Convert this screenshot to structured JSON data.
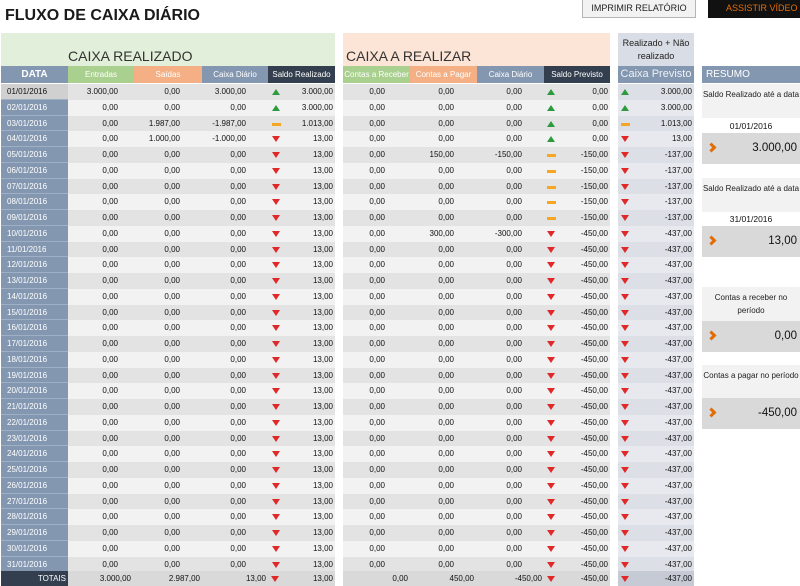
{
  "title": "FLUXO DE CAIXA DIÁRIO",
  "buttons": {
    "print": "IMPRIMIR RELATÓRIO",
    "video": "ASSISTIR VÍDEO DE"
  },
  "sections": {
    "realizado": "CAIXA REALIZADO",
    "a_realizar": "CAIXA A REALIZAR",
    "previsto_top": "Realizado + Não realizado"
  },
  "columns": {
    "data": "DATA",
    "entradas": "Entradas",
    "saidas": "Saídas",
    "caixa_diario": "Caixa Diário",
    "saldo_realizado": "Saldo Realizado",
    "contas_receber": "Contas a Receber",
    "contas_pagar": "Contas a Pagar",
    "caixa_diario_2": "Caixa Diário",
    "saldo_previsto": "Saldo Previsto",
    "caixa_previsto": "Caixa Previsto"
  },
  "icon_colors": {
    "up": "#2e9a3c",
    "down": "#e02828",
    "flat": "#f5a623",
    "accent": "#e36c09"
  },
  "rows": [
    {
      "date": "01/01/2016",
      "ent": "3.000,00",
      "sai": "0,00",
      "cxd": "3.000,00",
      "sr_icon": "up",
      "sr": "3.000,00",
      "cr": "0,00",
      "cp": "0,00",
      "cxd2": "0,00",
      "sp_icon": "up",
      "sp": "0,00",
      "prev_icon": "up",
      "prev": "3.000,00"
    },
    {
      "date": "02/01/2016",
      "ent": "0,00",
      "sai": "0,00",
      "cxd": "0,00",
      "sr_icon": "up",
      "sr": "3.000,00",
      "cr": "0,00",
      "cp": "0,00",
      "cxd2": "0,00",
      "sp_icon": "up",
      "sp": "0,00",
      "prev_icon": "up",
      "prev": "3.000,00"
    },
    {
      "date": "03/01/2016",
      "ent": "0,00",
      "sai": "1.987,00",
      "cxd": "-1.987,00",
      "sr_icon": "flat",
      "sr": "1.013,00",
      "cr": "0,00",
      "cp": "0,00",
      "cxd2": "0,00",
      "sp_icon": "up",
      "sp": "0,00",
      "prev_icon": "flat",
      "prev": "1.013,00"
    },
    {
      "date": "04/01/2016",
      "ent": "0,00",
      "sai": "1.000,00",
      "cxd": "-1.000,00",
      "sr_icon": "down",
      "sr": "13,00",
      "cr": "0,00",
      "cp": "0,00",
      "cxd2": "0,00",
      "sp_icon": "up",
      "sp": "0,00",
      "prev_icon": "down",
      "prev": "13,00"
    },
    {
      "date": "05/01/2016",
      "ent": "0,00",
      "sai": "0,00",
      "cxd": "0,00",
      "sr_icon": "down",
      "sr": "13,00",
      "cr": "0,00",
      "cp": "150,00",
      "cxd2": "-150,00",
      "sp_icon": "flat",
      "sp": "-150,00",
      "prev_icon": "down",
      "prev": "-137,00"
    },
    {
      "date": "06/01/2016",
      "ent": "0,00",
      "sai": "0,00",
      "cxd": "0,00",
      "sr_icon": "down",
      "sr": "13,00",
      "cr": "0,00",
      "cp": "0,00",
      "cxd2": "0,00",
      "sp_icon": "flat",
      "sp": "-150,00",
      "prev_icon": "down",
      "prev": "-137,00"
    },
    {
      "date": "07/01/2016",
      "ent": "0,00",
      "sai": "0,00",
      "cxd": "0,00",
      "sr_icon": "down",
      "sr": "13,00",
      "cr": "0,00",
      "cp": "0,00",
      "cxd2": "0,00",
      "sp_icon": "flat",
      "sp": "-150,00",
      "prev_icon": "down",
      "prev": "-137,00"
    },
    {
      "date": "08/01/2016",
      "ent": "0,00",
      "sai": "0,00",
      "cxd": "0,00",
      "sr_icon": "down",
      "sr": "13,00",
      "cr": "0,00",
      "cp": "0,00",
      "cxd2": "0,00",
      "sp_icon": "flat",
      "sp": "-150,00",
      "prev_icon": "down",
      "prev": "-137,00"
    },
    {
      "date": "09/01/2016",
      "ent": "0,00",
      "sai": "0,00",
      "cxd": "0,00",
      "sr_icon": "down",
      "sr": "13,00",
      "cr": "0,00",
      "cp": "0,00",
      "cxd2": "0,00",
      "sp_icon": "flat",
      "sp": "-150,00",
      "prev_icon": "down",
      "prev": "-137,00"
    },
    {
      "date": "10/01/2016",
      "ent": "0,00",
      "sai": "0,00",
      "cxd": "0,00",
      "sr_icon": "down",
      "sr": "13,00",
      "cr": "0,00",
      "cp": "300,00",
      "cxd2": "-300,00",
      "sp_icon": "down",
      "sp": "-450,00",
      "prev_icon": "down",
      "prev": "-437,00"
    },
    {
      "date": "11/01/2016",
      "ent": "0,00",
      "sai": "0,00",
      "cxd": "0,00",
      "sr_icon": "down",
      "sr": "13,00",
      "cr": "0,00",
      "cp": "0,00",
      "cxd2": "0,00",
      "sp_icon": "down",
      "sp": "-450,00",
      "prev_icon": "down",
      "prev": "-437,00"
    },
    {
      "date": "12/01/2016",
      "ent": "0,00",
      "sai": "0,00",
      "cxd": "0,00",
      "sr_icon": "down",
      "sr": "13,00",
      "cr": "0,00",
      "cp": "0,00",
      "cxd2": "0,00",
      "sp_icon": "down",
      "sp": "-450,00",
      "prev_icon": "down",
      "prev": "-437,00"
    },
    {
      "date": "13/01/2016",
      "ent": "0,00",
      "sai": "0,00",
      "cxd": "0,00",
      "sr_icon": "down",
      "sr": "13,00",
      "cr": "0,00",
      "cp": "0,00",
      "cxd2": "0,00",
      "sp_icon": "down",
      "sp": "-450,00",
      "prev_icon": "down",
      "prev": "-437,00"
    },
    {
      "date": "14/01/2016",
      "ent": "0,00",
      "sai": "0,00",
      "cxd": "0,00",
      "sr_icon": "down",
      "sr": "13,00",
      "cr": "0,00",
      "cp": "0,00",
      "cxd2": "0,00",
      "sp_icon": "down",
      "sp": "-450,00",
      "prev_icon": "down",
      "prev": "-437,00"
    },
    {
      "date": "15/01/2016",
      "ent": "0,00",
      "sai": "0,00",
      "cxd": "0,00",
      "sr_icon": "down",
      "sr": "13,00",
      "cr": "0,00",
      "cp": "0,00",
      "cxd2": "0,00",
      "sp_icon": "down",
      "sp": "-450,00",
      "prev_icon": "down",
      "prev": "-437,00"
    },
    {
      "date": "16/01/2016",
      "ent": "0,00",
      "sai": "0,00",
      "cxd": "0,00",
      "sr_icon": "down",
      "sr": "13,00",
      "cr": "0,00",
      "cp": "0,00",
      "cxd2": "0,00",
      "sp_icon": "down",
      "sp": "-450,00",
      "prev_icon": "down",
      "prev": "-437,00"
    },
    {
      "date": "17/01/2016",
      "ent": "0,00",
      "sai": "0,00",
      "cxd": "0,00",
      "sr_icon": "down",
      "sr": "13,00",
      "cr": "0,00",
      "cp": "0,00",
      "cxd2": "0,00",
      "sp_icon": "down",
      "sp": "-450,00",
      "prev_icon": "down",
      "prev": "-437,00"
    },
    {
      "date": "18/01/2016",
      "ent": "0,00",
      "sai": "0,00",
      "cxd": "0,00",
      "sr_icon": "down",
      "sr": "13,00",
      "cr": "0,00",
      "cp": "0,00",
      "cxd2": "0,00",
      "sp_icon": "down",
      "sp": "-450,00",
      "prev_icon": "down",
      "prev": "-437,00"
    },
    {
      "date": "19/01/2016",
      "ent": "0,00",
      "sai": "0,00",
      "cxd": "0,00",
      "sr_icon": "down",
      "sr": "13,00",
      "cr": "0,00",
      "cp": "0,00",
      "cxd2": "0,00",
      "sp_icon": "down",
      "sp": "-450,00",
      "prev_icon": "down",
      "prev": "-437,00"
    },
    {
      "date": "20/01/2016",
      "ent": "0,00",
      "sai": "0,00",
      "cxd": "0,00",
      "sr_icon": "down",
      "sr": "13,00",
      "cr": "0,00",
      "cp": "0,00",
      "cxd2": "0,00",
      "sp_icon": "down",
      "sp": "-450,00",
      "prev_icon": "down",
      "prev": "-437,00"
    },
    {
      "date": "21/01/2016",
      "ent": "0,00",
      "sai": "0,00",
      "cxd": "0,00",
      "sr_icon": "down",
      "sr": "13,00",
      "cr": "0,00",
      "cp": "0,00",
      "cxd2": "0,00",
      "sp_icon": "down",
      "sp": "-450,00",
      "prev_icon": "down",
      "prev": "-437,00"
    },
    {
      "date": "22/01/2016",
      "ent": "0,00",
      "sai": "0,00",
      "cxd": "0,00",
      "sr_icon": "down",
      "sr": "13,00",
      "cr": "0,00",
      "cp": "0,00",
      "cxd2": "0,00",
      "sp_icon": "down",
      "sp": "-450,00",
      "prev_icon": "down",
      "prev": "-437,00"
    },
    {
      "date": "23/01/2016",
      "ent": "0,00",
      "sai": "0,00",
      "cxd": "0,00",
      "sr_icon": "down",
      "sr": "13,00",
      "cr": "0,00",
      "cp": "0,00",
      "cxd2": "0,00",
      "sp_icon": "down",
      "sp": "-450,00",
      "prev_icon": "down",
      "prev": "-437,00"
    },
    {
      "date": "24/01/2016",
      "ent": "0,00",
      "sai": "0,00",
      "cxd": "0,00",
      "sr_icon": "down",
      "sr": "13,00",
      "cr": "0,00",
      "cp": "0,00",
      "cxd2": "0,00",
      "sp_icon": "down",
      "sp": "-450,00",
      "prev_icon": "down",
      "prev": "-437,00"
    },
    {
      "date": "25/01/2016",
      "ent": "0,00",
      "sai": "0,00",
      "cxd": "0,00",
      "sr_icon": "down",
      "sr": "13,00",
      "cr": "0,00",
      "cp": "0,00",
      "cxd2": "0,00",
      "sp_icon": "down",
      "sp": "-450,00",
      "prev_icon": "down",
      "prev": "-437,00"
    },
    {
      "date": "26/01/2016",
      "ent": "0,00",
      "sai": "0,00",
      "cxd": "0,00",
      "sr_icon": "down",
      "sr": "13,00",
      "cr": "0,00",
      "cp": "0,00",
      "cxd2": "0,00",
      "sp_icon": "down",
      "sp": "-450,00",
      "prev_icon": "down",
      "prev": "-437,00"
    },
    {
      "date": "27/01/2016",
      "ent": "0,00",
      "sai": "0,00",
      "cxd": "0,00",
      "sr_icon": "down",
      "sr": "13,00",
      "cr": "0,00",
      "cp": "0,00",
      "cxd2": "0,00",
      "sp_icon": "down",
      "sp": "-450,00",
      "prev_icon": "down",
      "prev": "-437,00"
    },
    {
      "date": "28/01/2016",
      "ent": "0,00",
      "sai": "0,00",
      "cxd": "0,00",
      "sr_icon": "down",
      "sr": "13,00",
      "cr": "0,00",
      "cp": "0,00",
      "cxd2": "0,00",
      "sp_icon": "down",
      "sp": "-450,00",
      "prev_icon": "down",
      "prev": "-437,00"
    },
    {
      "date": "29/01/2016",
      "ent": "0,00",
      "sai": "0,00",
      "cxd": "0,00",
      "sr_icon": "down",
      "sr": "13,00",
      "cr": "0,00",
      "cp": "0,00",
      "cxd2": "0,00",
      "sp_icon": "down",
      "sp": "-450,00",
      "prev_icon": "down",
      "prev": "-437,00"
    },
    {
      "date": "30/01/2016",
      "ent": "0,00",
      "sai": "0,00",
      "cxd": "0,00",
      "sr_icon": "down",
      "sr": "13,00",
      "cr": "0,00",
      "cp": "0,00",
      "cxd2": "0,00",
      "sp_icon": "down",
      "sp": "-450,00",
      "prev_icon": "down",
      "prev": "-437,00"
    },
    {
      "date": "31/01/2016",
      "ent": "0,00",
      "sai": "0,00",
      "cxd": "0,00",
      "sr_icon": "down",
      "sr": "13,00",
      "cr": "0,00",
      "cp": "0,00",
      "cxd2": "0,00",
      "sp_icon": "down",
      "sp": "-450,00",
      "prev_icon": "down",
      "prev": "-437,00"
    }
  ],
  "totals": {
    "label": "TOTAIS",
    "ent": "3.000,00",
    "sai": "2.987,00",
    "cxd": "13,00",
    "sr_icon": "down",
    "sr": "13,00",
    "cr": "0,00",
    "cp": "450,00",
    "cxd2": "-450,00",
    "sp_icon": "down",
    "sp": "-450,00",
    "prev_icon": "down",
    "prev": "-437,00"
  },
  "resumo": {
    "title": "RESUMO",
    "saldo1_label": "Saldo Realizado até a data",
    "saldo1_date": "01/01/2016",
    "saldo1_value": "3.000,00",
    "saldo2_label": "Saldo Realizado até a data",
    "saldo2_date": "31/01/2016",
    "saldo2_value": "13,00",
    "receber_label": "Contas a receber no período",
    "receber_value": "0,00",
    "pagar_label": "Contas a pagar no período",
    "pagar_value": "-450,00"
  }
}
